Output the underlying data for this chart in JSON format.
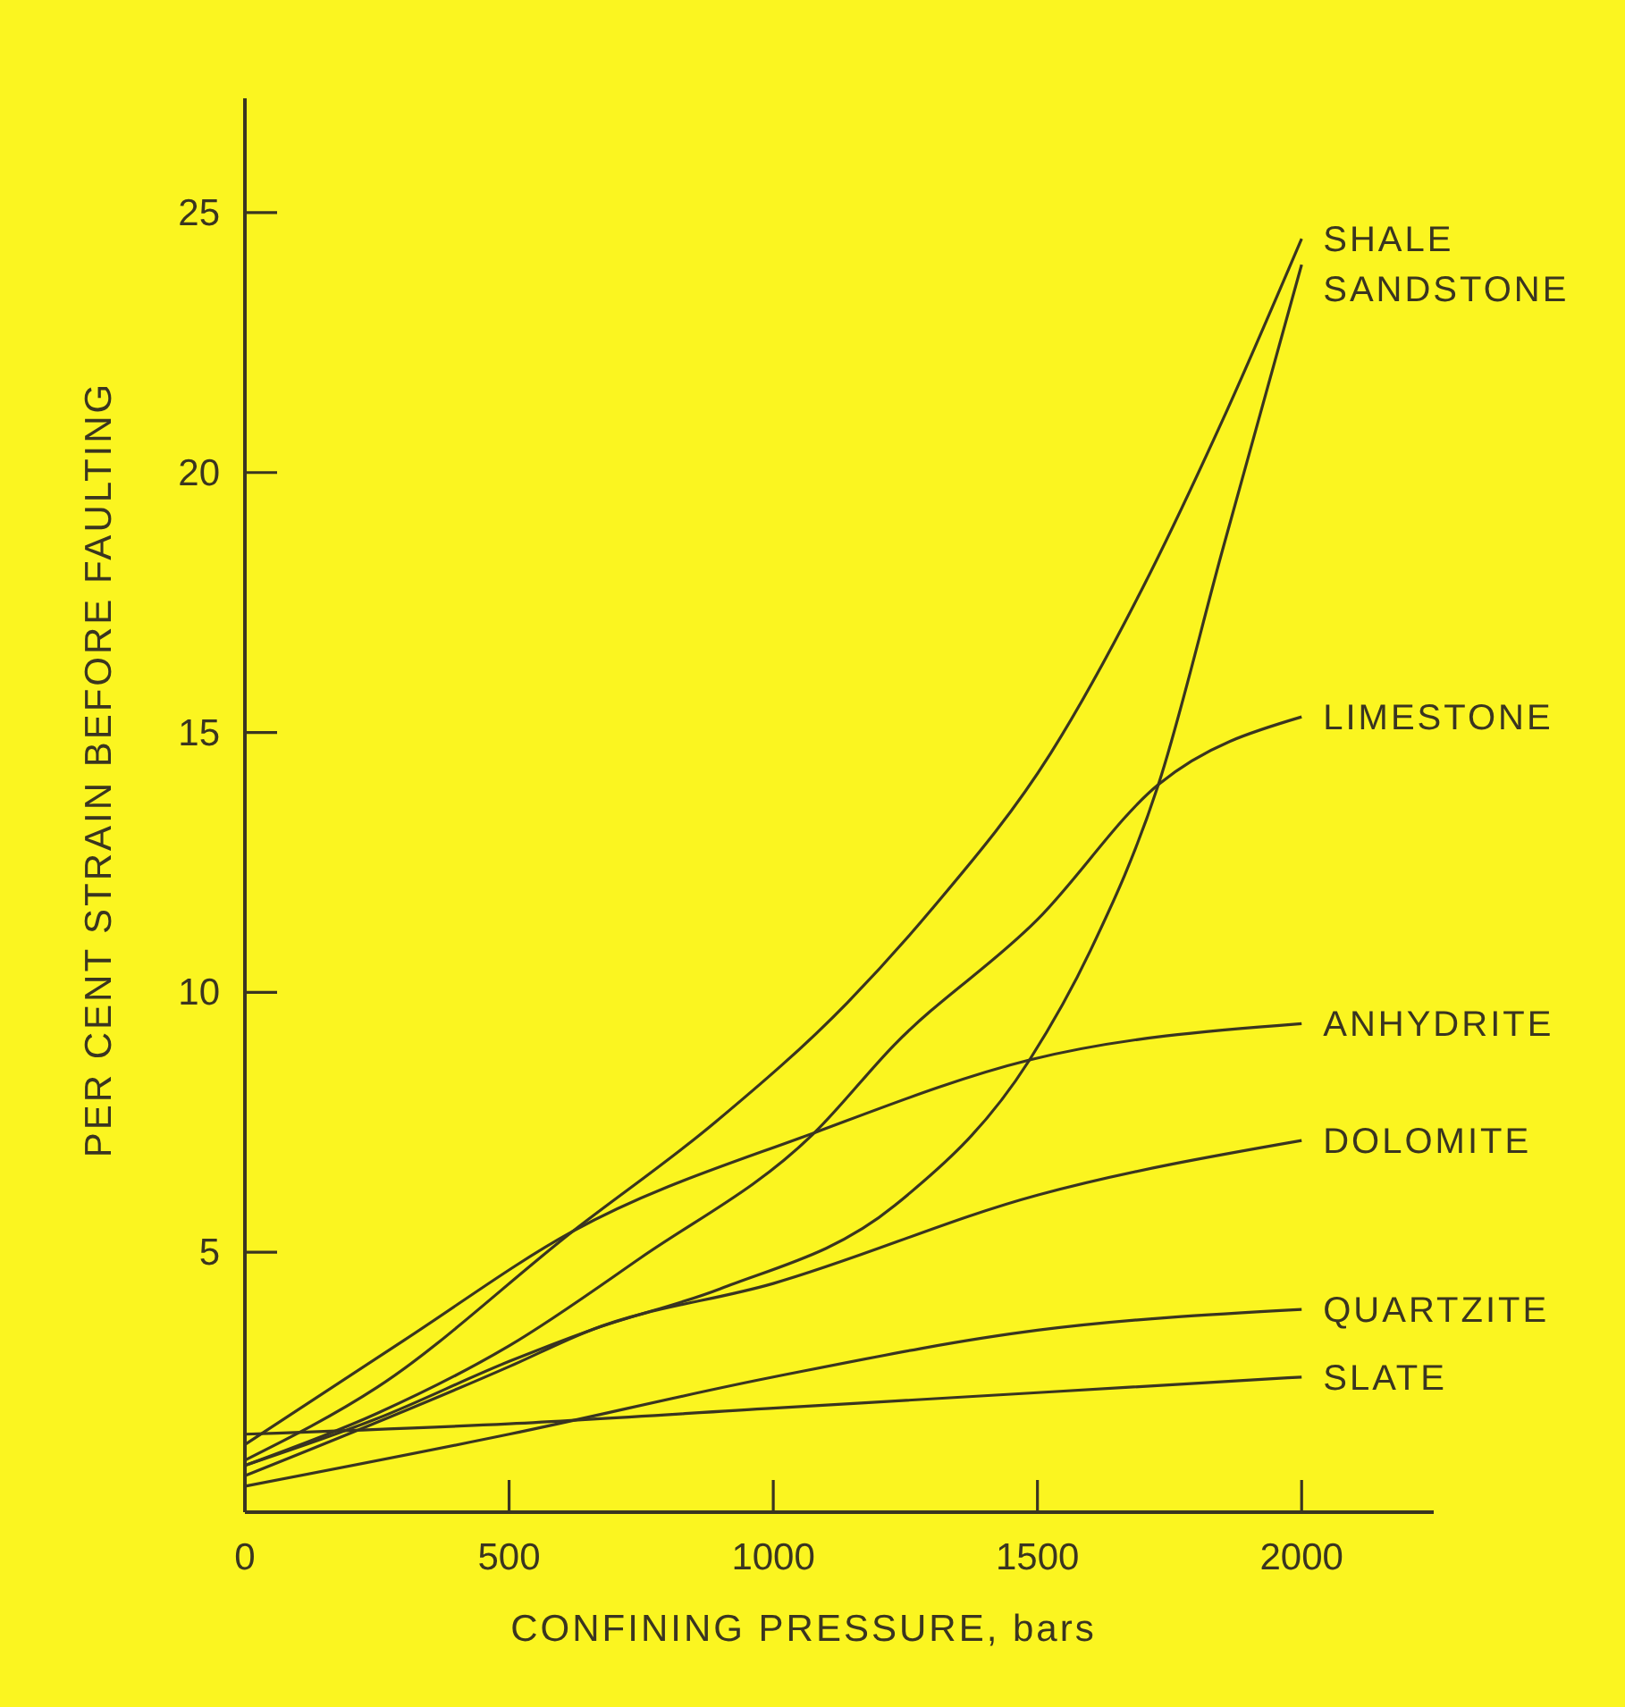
{
  "chart_data": {
    "type": "line",
    "xlabel": "CONFINING PRESSURE, bars",
    "ylabel": "PER CENT STRAIN BEFORE FAULTING",
    "xlim": [
      0,
      2250
    ],
    "ylim": [
      0,
      27.2
    ],
    "xticks": [
      0,
      500,
      1000,
      1500,
      2000
    ],
    "yticks": [
      5,
      10,
      15,
      20,
      25
    ],
    "grid": false,
    "marker": "none",
    "line_style": "solid",
    "series": [
      {
        "name": "SHALE",
        "color": "#3a3520",
        "x": [
          0,
          250,
          620,
          890,
          1140,
          1300,
          1525,
          1700,
          1850,
          2000
        ],
        "values": [
          1.0,
          2.4,
          5.4,
          7.5,
          9.8,
          11.6,
          14.6,
          17.8,
          21,
          24.5
        ]
      },
      {
        "name": "SANDSTONE",
        "color": "#3a3520",
        "x": [
          0,
          250,
          500,
          654,
          900,
          1230,
          1485,
          1600,
          1729,
          1850,
          2000
        ],
        "values": [
          0.9,
          1.8,
          2.9,
          3.5,
          4.3,
          5.9,
          8.7,
          10.8,
          14.0,
          18.5,
          24.0
        ]
      },
      {
        "name": "LIMESTONE",
        "color": "#3a3520",
        "x": [
          0,
          250,
          500,
          750,
          1078,
          1230,
          1500,
          1729,
          2000
        ],
        "values": [
          0.9,
          1.9,
          3.2,
          4.9,
          7.3,
          9.0,
          11.4,
          14.0,
          15.3
        ]
      },
      {
        "name": "ANHYDRITE",
        "color": "#3a3520",
        "x": [
          0,
          300,
          620,
          1078,
          1485,
          2000
        ],
        "values": [
          1.3,
          3.3,
          5.4,
          7.3,
          8.7,
          9.4
        ]
      },
      {
        "name": "DOLOMITE",
        "color": "#3a3520",
        "x": [
          0,
          500,
          654,
          1000,
          1500,
          2000
        ],
        "values": [
          0.7,
          2.8,
          3.5,
          4.4,
          6.1,
          7.15
        ]
      },
      {
        "name": "QUARTZITE",
        "color": "#3a3520",
        "x": [
          0,
          500,
          1000,
          1500,
          2000
        ],
        "values": [
          0.5,
          1.5,
          2.6,
          3.5,
          3.9
        ]
      },
      {
        "name": "SLATE",
        "color": "#3a3520",
        "x": [
          0,
          500,
          1000,
          1500,
          2000
        ],
        "values": [
          1.5,
          1.7,
          2.0,
          2.3,
          2.6
        ]
      }
    ]
  }
}
